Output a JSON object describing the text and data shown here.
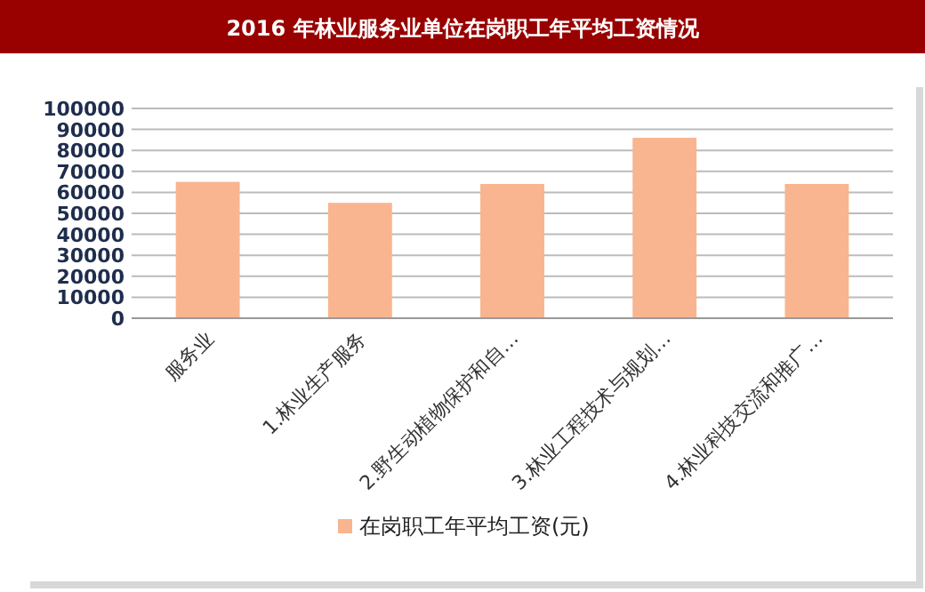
{
  "chart_data": {
    "type": "bar",
    "title": "2016 年林业服务业单位在岗职工年平均工资情况",
    "categories": [
      "服务业",
      "1.林业生产服务",
      "2.野生动植物保护和自…",
      "3.林业工程技术与规划…",
      "4.林业科技交流和推广…"
    ],
    "series": [
      {
        "name": "在岗职工年平均工资(元)",
        "color": "#f8b58f",
        "values": [
          65000,
          55000,
          64000,
          86000,
          64000
        ]
      }
    ],
    "ylim": [
      0,
      100000
    ],
    "yticks": [
      0,
      10000,
      20000,
      30000,
      40000,
      50000,
      60000,
      70000,
      80000,
      90000,
      100000
    ],
    "grid": "y",
    "legend": "bottom"
  }
}
